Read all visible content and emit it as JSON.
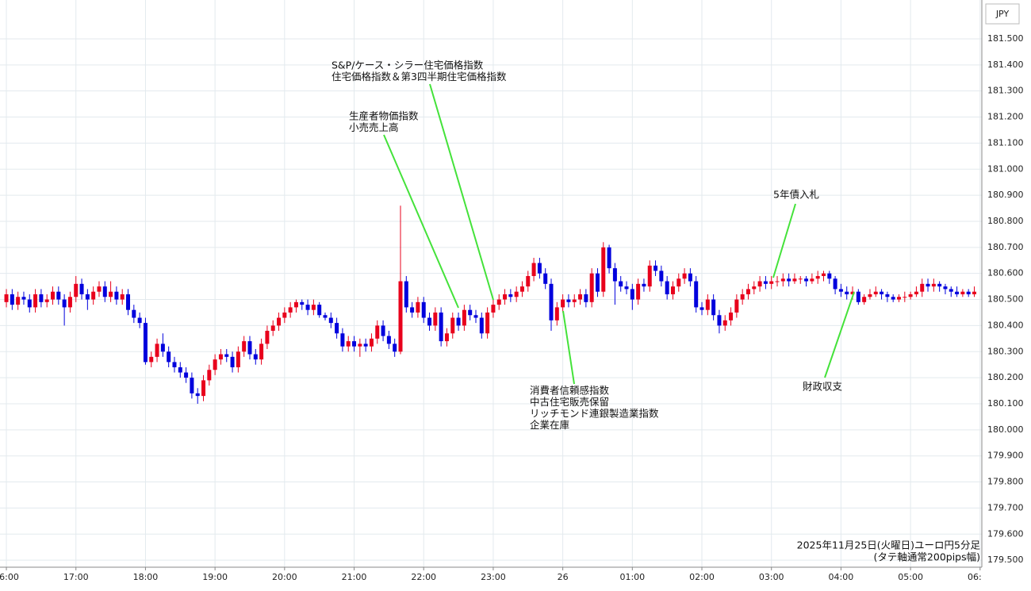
{
  "chart_data": {
    "type": "candlestick",
    "currency": "JPY",
    "footer": [
      "2025年11月25日(火曜日)ユーロ円5分足",
      "(タテ軸通常200pips幅)"
    ],
    "up_color": "#e8001c",
    "down_color": "#0000dd",
    "annotation_color": "#44e23a",
    "grid": true,
    "annotations": [
      {
        "lines": [
          "S&P/ケース・シラー住宅価格指数",
          "住宅価格指数＆第3四半期住宅価格指数"
        ]
      },
      {
        "lines": [
          "生産者物価指数",
          "小売売上高"
        ]
      },
      {
        "lines": [
          "消費者信頼感指数",
          "中古住宅販売保留",
          "リッチモンド連銀製造業指数",
          "企業在庫"
        ]
      },
      {
        "lines": [
          "5年債入札"
        ]
      },
      {
        "lines": [
          "財政収支"
        ]
      }
    ],
    "xlim": [
      -1.1,
      168.3
    ],
    "xticks": [
      {
        "value": 0,
        "label": "16:00"
      },
      {
        "value": 12,
        "label": "17:00"
      },
      {
        "value": 24,
        "label": "18:00"
      },
      {
        "value": 36,
        "label": "19:00"
      },
      {
        "value": 48,
        "label": "20:00"
      },
      {
        "value": 60,
        "label": "21:00"
      },
      {
        "value": 72,
        "label": "22:00"
      },
      {
        "value": 84,
        "label": "23:00"
      },
      {
        "value": 96,
        "label": "26"
      },
      {
        "value": 108,
        "label": "01:00"
      },
      {
        "value": 120,
        "label": "02:00"
      },
      {
        "value": 132,
        "label": "03:00"
      },
      {
        "value": 144,
        "label": "04:00"
      },
      {
        "value": 156,
        "label": "05:00"
      },
      {
        "value": 168,
        "label": "06:00"
      }
    ],
    "ylim": [
      179.473,
      181.649
    ],
    "yticks": [
      {
        "value": 179.5,
        "label": "179.500"
      },
      {
        "value": 179.6,
        "label": "179.600"
      },
      {
        "value": 179.7,
        "label": "179.700"
      },
      {
        "value": 179.8,
        "label": "179.800"
      },
      {
        "value": 179.9,
        "label": "179.900"
      },
      {
        "value": 180.0,
        "label": "180.000"
      },
      {
        "value": 180.1,
        "label": "180.100"
      },
      {
        "value": 180.2,
        "label": "180.200"
      },
      {
        "value": 180.3,
        "label": "180.300"
      },
      {
        "value": 180.4,
        "label": "180.400"
      },
      {
        "value": 180.5,
        "label": "180.500"
      },
      {
        "value": 180.6,
        "label": "180.600"
      },
      {
        "value": 180.7,
        "label": "180.700"
      },
      {
        "value": 180.8,
        "label": "180.800"
      },
      {
        "value": 180.9,
        "label": "180.900"
      },
      {
        "value": 181.0,
        "label": "181.000"
      },
      {
        "value": 181.1,
        "label": "181.100"
      },
      {
        "value": 181.2,
        "label": "181.200"
      },
      {
        "value": 181.3,
        "label": "181.300"
      },
      {
        "value": 181.4,
        "label": "181.400"
      },
      {
        "value": 181.5,
        "label": "181.500"
      }
    ],
    "open": [
      180.49,
      180.52,
      180.48,
      180.51,
      180.5,
      180.47,
      180.52,
      180.49,
      180.5,
      180.53,
      180.5,
      180.47,
      180.51,
      180.56,
      180.52,
      180.5,
      180.53,
      180.55,
      180.51,
      180.53,
      180.5,
      180.52,
      180.46,
      180.43,
      180.41,
      180.26,
      180.28,
      180.33,
      180.3,
      180.26,
      180.24,
      180.22,
      180.2,
      180.14,
      180.13,
      180.19,
      180.23,
      180.27,
      180.29,
      180.28,
      180.24,
      180.3,
      180.34,
      180.29,
      180.27,
      180.33,
      180.38,
      180.4,
      180.43,
      180.45,
      180.47,
      180.49,
      180.48,
      180.46,
      180.48,
      180.44,
      180.43,
      180.41,
      180.37,
      180.32,
      180.34,
      180.32,
      180.33,
      180.32,
      180.35,
      180.4,
      180.36,
      180.33,
      180.3,
      180.57,
      180.47,
      180.45,
      180.49,
      180.43,
      180.4,
      180.45,
      180.34,
      180.37,
      180.43,
      180.4,
      180.46,
      180.44,
      180.43,
      180.37,
      180.45,
      180.48,
      180.5,
      180.52,
      180.51,
      180.53,
      180.55,
      180.59,
      180.64,
      180.6,
      180.56,
      180.42,
      180.47,
      180.5,
      180.49,
      180.5,
      180.52,
      180.49,
      180.6,
      180.53,
      180.7,
      180.62,
      180.57,
      180.55,
      180.54,
      180.5,
      180.56,
      180.55,
      180.63,
      180.61,
      180.57,
      180.52,
      180.55,
      180.58,
      180.6,
      180.57,
      180.47,
      180.46,
      180.5,
      180.44,
      180.4,
      180.42,
      180.45,
      180.5,
      180.52,
      180.54,
      180.55,
      180.57,
      180.56,
      180.57,
      180.57,
      180.58,
      180.57,
      180.58,
      180.58,
      180.57,
      180.58,
      180.59,
      180.6,
      180.58,
      180.54,
      180.53,
      180.52,
      180.53,
      180.49,
      180.51,
      180.52,
      180.53,
      180.52,
      180.51,
      180.5,
      180.51,
      180.51,
      180.52,
      180.53,
      180.56,
      180.55,
      180.56,
      180.55,
      180.54,
      180.53,
      180.52,
      180.53,
      180.52
    ],
    "high": [
      180.54,
      180.54,
      180.53,
      180.53,
      180.52,
      180.54,
      180.54,
      180.52,
      180.55,
      180.55,
      180.52,
      180.53,
      180.59,
      180.58,
      180.54,
      180.55,
      180.57,
      180.57,
      180.57,
      180.55,
      180.54,
      180.54,
      180.48,
      180.45,
      180.43,
      180.3,
      180.35,
      180.37,
      180.32,
      180.28,
      180.26,
      180.24,
      180.22,
      180.16,
      180.21,
      180.25,
      180.29,
      180.31,
      180.31,
      180.3,
      180.32,
      180.36,
      180.36,
      180.31,
      180.35,
      180.4,
      180.42,
      180.45,
      180.47,
      180.49,
      180.5,
      180.5,
      180.5,
      180.5,
      180.49,
      180.45,
      180.45,
      180.43,
      180.39,
      180.36,
      180.36,
      180.35,
      180.35,
      180.37,
      180.42,
      180.42,
      180.38,
      180.35,
      180.86,
      180.59,
      180.49,
      180.51,
      180.51,
      180.45,
      180.47,
      180.47,
      180.39,
      180.45,
      180.45,
      180.48,
      180.48,
      180.46,
      180.45,
      180.47,
      180.5,
      180.52,
      180.54,
      180.54,
      180.55,
      180.57,
      180.61,
      180.66,
      180.66,
      180.62,
      180.58,
      180.49,
      180.52,
      180.52,
      180.52,
      180.54,
      180.54,
      180.62,
      180.62,
      180.72,
      180.71,
      180.64,
      180.59,
      180.57,
      180.56,
      180.58,
      180.58,
      180.65,
      180.65,
      180.63,
      180.59,
      180.57,
      180.6,
      180.62,
      180.62,
      180.59,
      180.49,
      180.52,
      180.52,
      180.46,
      180.44,
      180.47,
      180.52,
      180.54,
      180.56,
      180.57,
      180.59,
      180.59,
      180.59,
      180.59,
      180.6,
      180.6,
      180.6,
      180.59,
      180.59,
      180.6,
      180.61,
      180.61,
      180.61,
      180.59,
      180.56,
      180.55,
      180.55,
      180.54,
      180.52,
      180.54,
      180.55,
      180.54,
      180.53,
      180.52,
      180.52,
      180.53,
      180.53,
      180.55,
      180.58,
      180.58,
      180.58,
      180.57,
      180.56,
      180.55,
      180.55,
      180.54,
      180.54,
      180.55
    ],
    "low": [
      180.47,
      180.46,
      180.46,
      180.48,
      180.45,
      180.45,
      180.47,
      180.47,
      180.48,
      180.48,
      180.4,
      180.45,
      180.49,
      180.5,
      180.46,
      180.48,
      180.51,
      180.49,
      180.49,
      180.48,
      180.48,
      180.44,
      180.41,
      180.39,
      180.25,
      180.24,
      180.26,
      180.28,
      180.24,
      180.22,
      180.2,
      180.18,
      180.12,
      180.1,
      180.11,
      180.17,
      180.21,
      180.25,
      180.26,
      180.22,
      180.22,
      180.28,
      180.27,
      180.25,
      180.25,
      180.31,
      180.36,
      180.38,
      180.41,
      180.43,
      180.45,
      180.46,
      180.44,
      180.44,
      180.43,
      180.42,
      180.39,
      180.35,
      180.3,
      180.3,
      180.3,
      180.28,
      180.3,
      180.3,
      180.33,
      180.34,
      180.31,
      180.28,
      180.29,
      180.45,
      180.43,
      180.43,
      180.41,
      180.38,
      180.38,
      180.32,
      180.32,
      180.35,
      180.38,
      180.38,
      180.42,
      180.41,
      180.35,
      180.35,
      180.43,
      180.46,
      180.48,
      180.49,
      180.49,
      180.51,
      180.53,
      180.57,
      180.58,
      180.54,
      180.38,
      180.4,
      180.45,
      180.47,
      180.47,
      180.48,
      180.47,
      180.47,
      180.51,
      180.51,
      180.6,
      180.48,
      180.53,
      180.52,
      180.46,
      180.48,
      180.53,
      180.53,
      180.59,
      180.55,
      180.5,
      180.5,
      180.53,
      180.56,
      180.55,
      180.45,
      180.44,
      180.44,
      180.42,
      180.37,
      180.38,
      180.4,
      180.43,
      180.48,
      180.5,
      180.52,
      180.53,
      180.54,
      180.54,
      180.55,
      180.55,
      180.55,
      180.56,
      180.56,
      180.55,
      180.56,
      180.56,
      180.57,
      180.56,
      180.52,
      180.51,
      180.5,
      180.5,
      180.48,
      180.48,
      180.5,
      180.51,
      180.5,
      180.49,
      180.49,
      180.49,
      180.49,
      180.5,
      180.51,
      180.51,
      180.53,
      180.53,
      180.53,
      180.52,
      180.51,
      180.51,
      180.51,
      180.51,
      180.51
    ],
    "close": [
      180.52,
      180.48,
      180.51,
      180.5,
      180.47,
      180.52,
      180.49,
      180.5,
      180.53,
      180.5,
      180.47,
      180.51,
      180.56,
      180.52,
      180.5,
      180.53,
      180.55,
      180.51,
      180.53,
      180.5,
      180.52,
      180.46,
      180.43,
      180.41,
      180.26,
      180.28,
      180.33,
      180.3,
      180.26,
      180.24,
      180.22,
      180.2,
      180.14,
      180.13,
      180.19,
      180.23,
      180.27,
      180.29,
      180.28,
      180.24,
      180.3,
      180.34,
      180.29,
      180.27,
      180.33,
      180.38,
      180.4,
      180.43,
      180.45,
      180.47,
      180.49,
      180.48,
      180.46,
      180.48,
      180.44,
      180.43,
      180.41,
      180.37,
      180.32,
      180.34,
      180.32,
      180.33,
      180.32,
      180.35,
      180.4,
      180.36,
      180.33,
      180.3,
      180.57,
      180.47,
      180.45,
      180.49,
      180.43,
      180.4,
      180.45,
      180.34,
      180.37,
      180.43,
      180.4,
      180.46,
      180.44,
      180.43,
      180.37,
      180.45,
      180.48,
      180.5,
      180.52,
      180.51,
      180.53,
      180.55,
      180.59,
      180.64,
      180.6,
      180.56,
      180.42,
      180.47,
      180.5,
      180.49,
      180.5,
      180.52,
      180.49,
      180.6,
      180.53,
      180.7,
      180.62,
      180.57,
      180.55,
      180.54,
      180.5,
      180.56,
      180.55,
      180.63,
      180.61,
      180.57,
      180.52,
      180.55,
      180.58,
      180.6,
      180.57,
      180.47,
      180.46,
      180.5,
      180.44,
      180.4,
      180.42,
      180.45,
      180.5,
      180.52,
      180.54,
      180.55,
      180.57,
      180.56,
      180.57,
      180.57,
      180.58,
      180.57,
      180.58,
      180.58,
      180.57,
      180.58,
      180.59,
      180.6,
      180.58,
      180.54,
      180.53,
      180.52,
      180.53,
      180.49,
      180.51,
      180.52,
      180.53,
      180.52,
      180.51,
      180.5,
      180.51,
      180.51,
      180.52,
      180.53,
      180.56,
      180.55,
      180.56,
      180.55,
      180.54,
      180.53,
      180.52,
      180.53,
      180.52,
      180.53
    ]
  }
}
